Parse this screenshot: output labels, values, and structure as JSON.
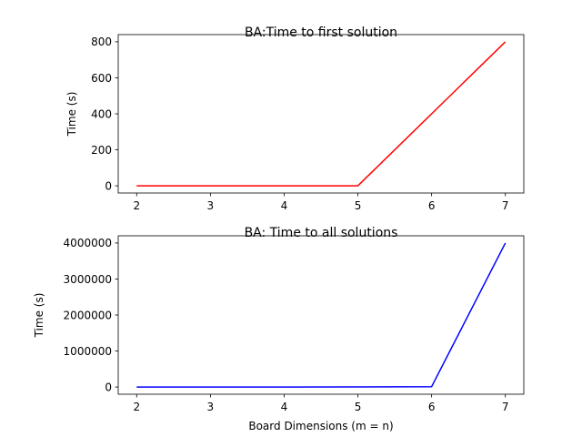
{
  "chart_data": [
    {
      "type": "line",
      "title": "BA:Time to first solution",
      "xlabel": "",
      "ylabel": "Time (s)",
      "x": [
        2,
        3,
        4,
        5,
        6,
        7
      ],
      "series": [
        {
          "values": [
            0,
            0,
            0,
            0,
            400,
            800
          ],
          "color": "#ff0000"
        }
      ],
      "xlim": [
        1.75,
        7.25
      ],
      "ylim": [
        -40,
        840
      ],
      "xticks": [
        2,
        3,
        4,
        5,
        6,
        7
      ],
      "yticks": [
        0,
        200,
        400,
        600,
        800
      ],
      "xtick_labels": [
        "2",
        "3",
        "4",
        "5",
        "6",
        "7"
      ],
      "ytick_labels": [
        "0",
        "200",
        "400",
        "600",
        "800"
      ],
      "grid": false
    },
    {
      "type": "line",
      "title": "BA: Time to all solutions",
      "xlabel": "Board Dimensions (m = n)",
      "ylabel": "Time (s)",
      "x": [
        2,
        3,
        4,
        5,
        6,
        7
      ],
      "series": [
        {
          "values": [
            0,
            0,
            0,
            1000,
            10000,
            4000000
          ],
          "color": "#0000ff"
        }
      ],
      "xlim": [
        1.75,
        7.25
      ],
      "ylim": [
        -200000,
        4200000
      ],
      "xticks": [
        2,
        3,
        4,
        5,
        6,
        7
      ],
      "yticks": [
        0,
        1000000,
        2000000,
        3000000,
        4000000
      ],
      "xtick_labels": [
        "2",
        "3",
        "4",
        "5",
        "6",
        "7"
      ],
      "ytick_labels": [
        "0",
        "1000000",
        "2000000",
        "3000000",
        "4000000"
      ],
      "grid": false
    }
  ]
}
